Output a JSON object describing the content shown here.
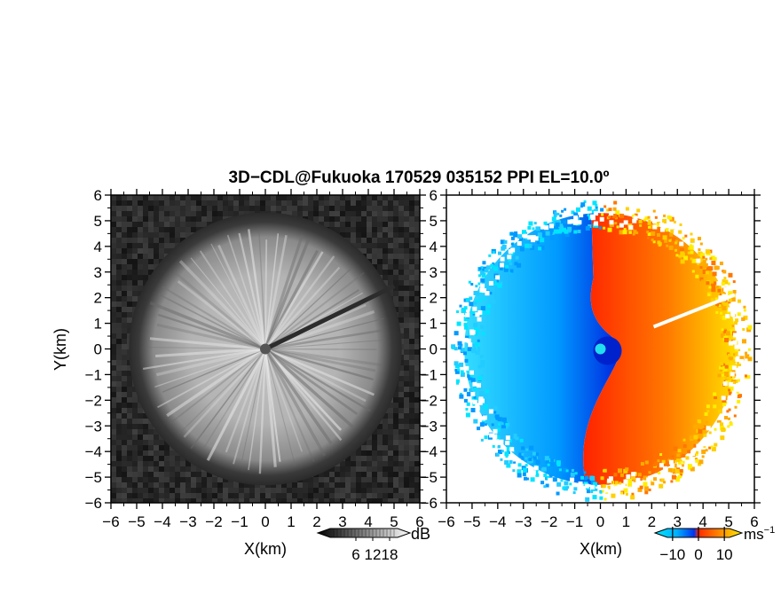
{
  "figure": {
    "title": "3D−CDL@Fukuoka 170529 035152 PPI EL=10.0º"
  },
  "chart_data": [
    {
      "type": "heatmap",
      "quantity": "SNR (grayscale)",
      "xlabel": "X(km)",
      "ylabel": "Y(km)",
      "xlim": [
        -6,
        6
      ],
      "ylim": [
        -6,
        6
      ],
      "xticks": [
        "−6",
        "−5",
        "−4",
        "−3",
        "−2",
        "−1",
        "0",
        "1",
        "2",
        "3",
        "4",
        "5",
        "6"
      ],
      "yticks": [
        "−6",
        "−5",
        "−4",
        "−3",
        "−2",
        "−1",
        "0",
        "1",
        "2",
        "3",
        "4",
        "5",
        "6"
      ],
      "colorbar": {
        "unit": "dB",
        "ticks": [
          "6",
          "12",
          "18"
        ],
        "range": [
          0,
          24
        ],
        "colors": [
          "#000000",
          "#ffffff"
        ]
      },
      "scan_radius_km": 5.3,
      "grid": false
    },
    {
      "type": "heatmap",
      "quantity": "Doppler velocity",
      "xlabel": "X(km)",
      "ylabel": "",
      "xlim": [
        -6,
        6
      ],
      "ylim": [
        -6,
        6
      ],
      "xticks": [
        "−6",
        "−5",
        "−4",
        "−3",
        "−2",
        "−1",
        "0",
        "1",
        "2",
        "3",
        "4",
        "5",
        "6"
      ],
      "yticks": [
        "−6",
        "−5",
        "−4",
        "−3",
        "−2",
        "−1",
        "0",
        "1",
        "2",
        "3",
        "4",
        "5",
        "6"
      ],
      "colorbar": {
        "unit": "ms",
        "unit_exponent": "−1",
        "ticks": [
          "−10",
          "0",
          "10"
        ],
        "range": [
          -12,
          12
        ],
        "colors": [
          "#00e5ff",
          "#0066ff",
          "#0000cc",
          "#ff2200",
          "#ff8800",
          "#ffee00"
        ]
      },
      "scan_radius_km": 5.3,
      "grid": false
    }
  ]
}
